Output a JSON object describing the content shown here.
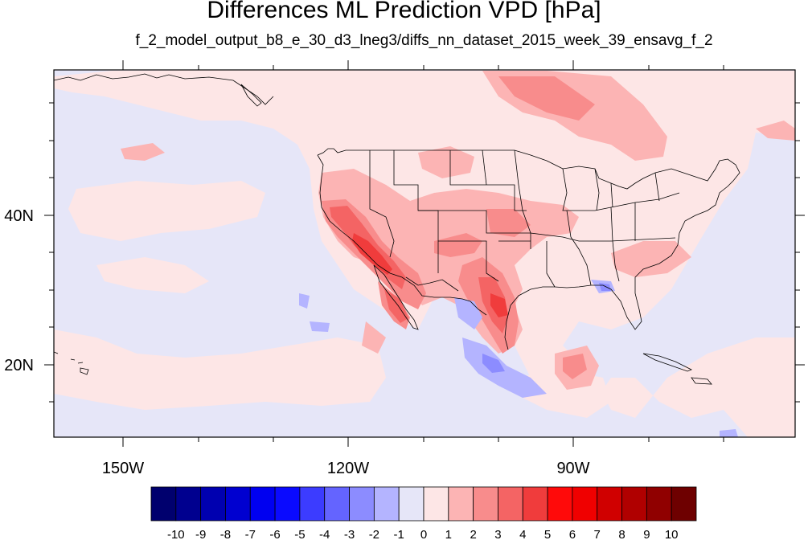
{
  "title": "Differences ML Prediction VPD [hPa]",
  "subtitle": "f_2_model_output_b8_e_30_d3_lneg3/diffs_nn_dataset_2015_week_39_ensavg_f_2",
  "lon_labels": [
    "150W",
    "120W",
    "90W"
  ],
  "lat_labels": [
    "40N",
    "20N"
  ],
  "colorbar": {
    "labels": [
      "-10",
      "-9",
      "-8",
      "-7",
      "-6",
      "-5",
      "-4",
      "-3",
      "-2",
      "-1",
      "0",
      "1",
      "2",
      "3",
      "4",
      "5",
      "6",
      "7",
      "8",
      "9",
      "10"
    ],
    "colors": [
      "#00006e",
      "#00008f",
      "#0000b0",
      "#0000d0",
      "#0000f0",
      "#0a0aff",
      "#3c3cff",
      "#6464ff",
      "#8c8cff",
      "#b4b4ff",
      "#e6e6f8",
      "#fde6e6",
      "#fcb4b4",
      "#f88c8c",
      "#f46464",
      "#f03c3c",
      "#ff0a0a",
      "#f00000",
      "#d00000",
      "#b00000",
      "#900000",
      "#6e0000"
    ]
  },
  "colors": {
    "background_field": "#e6e6f8",
    "weak_positive": "#fde6e6",
    "positive_2": "#fcb4b4",
    "positive_3": "#f88c8c",
    "positive_4": "#f46464",
    "positive_5": "#f03c3c",
    "negative_2": "#b4b4ff",
    "negative_3": "#8c8cff"
  }
}
